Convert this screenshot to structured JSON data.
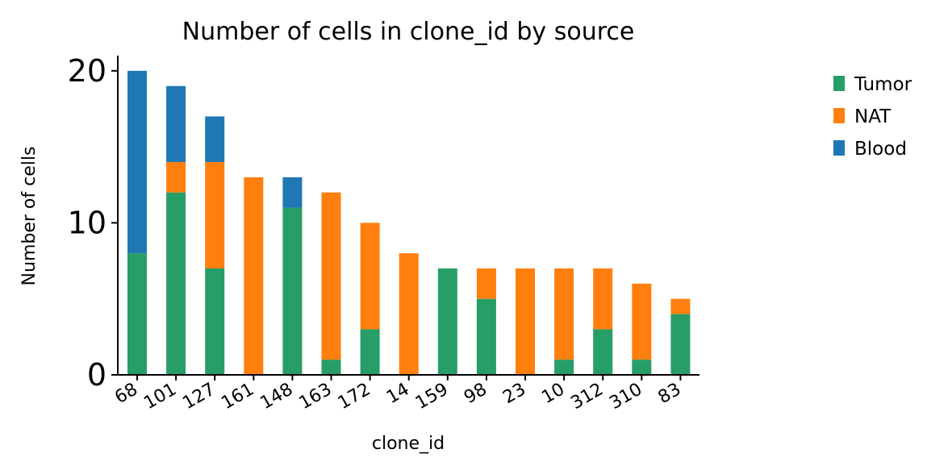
{
  "chart_data": {
    "type": "bar",
    "stacked": true,
    "title": "Number of cells in clone_id by source",
    "xlabel": "clone_id",
    "ylabel": "Number of cells",
    "categories": [
      "68",
      "101",
      "127",
      "161",
      "148",
      "163",
      "172",
      "14",
      "159",
      "98",
      "23",
      "10",
      "312",
      "310",
      "83"
    ],
    "ylim": [
      0,
      21
    ],
    "yticks": [
      0,
      10,
      20
    ],
    "legend_position": "right",
    "series": [
      {
        "name": "Tumor",
        "color": "#279e68",
        "values": [
          8,
          12,
          7,
          0,
          11,
          1,
          3,
          0,
          7,
          5,
          0,
          1,
          3,
          1,
          4
        ]
      },
      {
        "name": "NAT",
        "color": "#ff7f0e",
        "values": [
          0,
          2,
          7,
          13,
          0,
          11,
          7,
          8,
          0,
          2,
          7,
          6,
          4,
          5,
          1
        ]
      },
      {
        "name": "Blood",
        "color": "#1f77b4",
        "values": [
          12,
          5,
          3,
          0,
          2,
          0,
          0,
          0,
          0,
          0,
          0,
          0,
          0,
          0,
          0
        ]
      }
    ]
  }
}
